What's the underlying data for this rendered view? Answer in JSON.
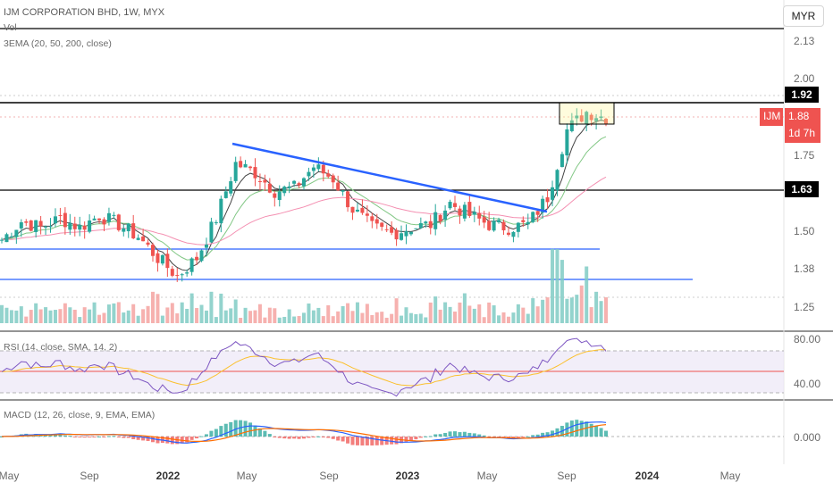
{
  "header": {
    "title": "IJM CORPORATION BHD, 1W, MYX",
    "indicator_1": "Vol",
    "indicator_2": "3EMA (20, 50, 200, close)",
    "currency_button": "MYR"
  },
  "rsi_legend": "RSI (14, close, SMA, 14, 2)",
  "macd_legend": "MACD (12, 26, close, 9, EMA, EMA)",
  "price_axis": {
    "ticks": [
      "2.13",
      "2.00",
      "1.75",
      "1.50",
      "1.38",
      "1.25"
    ],
    "level_tags": [
      "1.92",
      "1.63"
    ],
    "symbol_tag": "IJM",
    "last_price": "1.88",
    "countdown": "1d 7h"
  },
  "rsi_axis": {
    "ticks": [
      "80.00",
      "40.00"
    ]
  },
  "macd_axis": {
    "ticks": [
      "0.000"
    ]
  },
  "time_axis": {
    "labels": [
      "May",
      "Sep",
      "2022",
      "May",
      "Sep",
      "2023",
      "May",
      "Sep",
      "2024",
      "May"
    ],
    "bold": [
      false,
      false,
      true,
      false,
      false,
      true,
      false,
      false,
      true,
      false
    ]
  },
  "colors": {
    "up": "#26a69a",
    "down": "#ef5350",
    "trendline": "#2962ff",
    "ema20": "#444444",
    "ema50": "#81c784",
    "ema200": "#f48fb1",
    "rsi_line": "#7e57c2",
    "rsi_ma": "#fbc02d",
    "macd_line": "#2962ff",
    "signal_line": "#ff6d00"
  },
  "chart_data": {
    "type": "candlestick",
    "symbol": "IJM",
    "interval": "1W",
    "price_range": [
      1.2,
      2.2
    ],
    "horizontal_levels": [
      1.92,
      1.63,
      1.44,
      1.35
    ],
    "trendline": {
      "from": [
        "2022-04",
        1.81
      ],
      "to": [
        "2023-08",
        1.57
      ]
    },
    "weekly_close_path": [
      [
        "2021-04",
        1.48
      ],
      [
        "2021-05",
        1.54
      ],
      [
        "2021-06",
        1.52
      ],
      [
        "2021-07",
        1.55
      ],
      [
        "2021-08",
        1.52
      ],
      [
        "2021-09",
        1.56
      ],
      [
        "2021-10",
        1.53
      ],
      [
        "2021-11",
        1.49
      ],
      [
        "2021-12",
        1.42
      ],
      [
        "2022-01",
        1.36
      ],
      [
        "2022-02",
        1.42
      ],
      [
        "2022-03",
        1.55
      ],
      [
        "2022-04",
        1.73
      ],
      [
        "2022-05",
        1.7
      ],
      [
        "2022-06",
        1.64
      ],
      [
        "2022-07",
        1.65
      ],
      [
        "2022-08",
        1.72
      ],
      [
        "2022-09",
        1.68
      ],
      [
        "2022-10",
        1.58
      ],
      [
        "2022-11",
        1.52
      ],
      [
        "2022-12",
        1.5
      ],
      [
        "2023-01",
        1.52
      ],
      [
        "2023-02",
        1.53
      ],
      [
        "2023-03",
        1.6
      ],
      [
        "2023-04",
        1.56
      ],
      [
        "2023-05",
        1.53
      ],
      [
        "2023-06",
        1.52
      ],
      [
        "2023-07",
        1.53
      ],
      [
        "2023-08",
        1.62
      ],
      [
        "2023-09",
        1.84
      ],
      [
        "2023-10",
        1.9
      ],
      [
        "2023-11",
        1.88
      ]
    ],
    "rsi": {
      "range": [
        20,
        90
      ],
      "bands": [
        70,
        50,
        30
      ],
      "last": 64
    },
    "macd": {
      "zero_line": 0.0,
      "trend": "positive and rising into late 2023"
    }
  }
}
